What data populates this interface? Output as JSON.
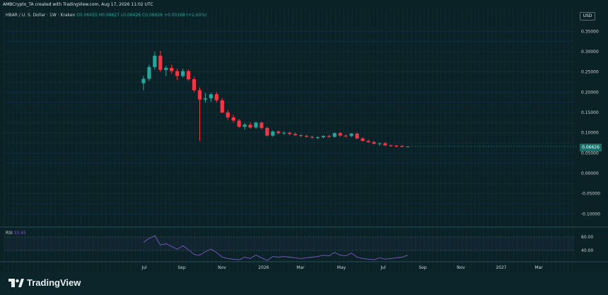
{
  "header": {
    "created_by": "AMBCrypto_TA created with TradingView.com, Aug 17, 2026 11:02 UTC"
  },
  "legend": {
    "symbol": "HBAR / U. S. Dollar · 1W · Kraken",
    "ohlc": "O0.06455 H0.06627 L0.06426 C0.06626",
    "change": "+0.00168 (+2.60%)"
  },
  "currency_button": "USD",
  "current_price": "0.06626",
  "rsi": {
    "label": "RSI",
    "value": "33.45"
  },
  "brand": {
    "name": "TradingView"
  },
  "colors": {
    "background": "#0a2226",
    "up": "#26a69a",
    "down": "#f23645",
    "rsi_line": "#7e57c2",
    "grid": "#1d3b5a"
  },
  "chart_data": {
    "type": "candlestick",
    "ylim": [
      -0.12,
      0.37
    ],
    "yticks": [
      "0.35000",
      "0.30000",
      "0.25000",
      "0.20000",
      "0.15000",
      "0.10000",
      "0.05000",
      "0.00000",
      "-0.05000",
      "-0.10000"
    ],
    "x_tick_labels": [
      "Jul",
      "Sep",
      "Nov",
      "2026",
      "Mar",
      "May",
      "Jul",
      "Sep",
      "Nov",
      "2027",
      "Mar"
    ],
    "candles": [
      {
        "o": 0.222,
        "h": 0.24,
        "l": 0.205,
        "c": 0.233
      },
      {
        "o": 0.233,
        "h": 0.268,
        "l": 0.228,
        "c": 0.262
      },
      {
        "o": 0.262,
        "h": 0.3,
        "l": 0.255,
        "c": 0.29
      },
      {
        "o": 0.29,
        "h": 0.302,
        "l": 0.25,
        "c": 0.255
      },
      {
        "o": 0.255,
        "h": 0.265,
        "l": 0.24,
        "c": 0.26
      },
      {
        "o": 0.26,
        "h": 0.268,
        "l": 0.245,
        "c": 0.252
      },
      {
        "o": 0.252,
        "h": 0.258,
        "l": 0.23,
        "c": 0.24
      },
      {
        "o": 0.24,
        "h": 0.258,
        "l": 0.236,
        "c": 0.252
      },
      {
        "o": 0.252,
        "h": 0.256,
        "l": 0.228,
        "c": 0.232
      },
      {
        "o": 0.232,
        "h": 0.238,
        "l": 0.2,
        "c": 0.205
      },
      {
        "o": 0.205,
        "h": 0.212,
        "l": 0.08,
        "c": 0.182
      },
      {
        "o": 0.182,
        "h": 0.198,
        "l": 0.175,
        "c": 0.185
      },
      {
        "o": 0.185,
        "h": 0.198,
        "l": 0.176,
        "c": 0.195
      },
      {
        "o": 0.195,
        "h": 0.2,
        "l": 0.175,
        "c": 0.18
      },
      {
        "o": 0.18,
        "h": 0.186,
        "l": 0.148,
        "c": 0.15
      },
      {
        "o": 0.15,
        "h": 0.156,
        "l": 0.132,
        "c": 0.138
      },
      {
        "o": 0.138,
        "h": 0.145,
        "l": 0.125,
        "c": 0.13
      },
      {
        "o": 0.13,
        "h": 0.134,
        "l": 0.112,
        "c": 0.115
      },
      {
        "o": 0.115,
        "h": 0.124,
        "l": 0.108,
        "c": 0.12
      },
      {
        "o": 0.12,
        "h": 0.126,
        "l": 0.11,
        "c": 0.113
      },
      {
        "o": 0.113,
        "h": 0.128,
        "l": 0.11,
        "c": 0.125
      },
      {
        "o": 0.125,
        "h": 0.128,
        "l": 0.108,
        "c": 0.112
      },
      {
        "o": 0.112,
        "h": 0.115,
        "l": 0.09,
        "c": 0.093
      },
      {
        "o": 0.093,
        "h": 0.106,
        "l": 0.09,
        "c": 0.103
      },
      {
        "o": 0.103,
        "h": 0.106,
        "l": 0.096,
        "c": 0.099
      },
      {
        "o": 0.099,
        "h": 0.104,
        "l": 0.095,
        "c": 0.1
      },
      {
        "o": 0.1,
        "h": 0.103,
        "l": 0.094,
        "c": 0.097
      },
      {
        "o": 0.097,
        "h": 0.101,
        "l": 0.092,
        "c": 0.094
      },
      {
        "o": 0.094,
        "h": 0.097,
        "l": 0.089,
        "c": 0.092
      },
      {
        "o": 0.092,
        "h": 0.095,
        "l": 0.088,
        "c": 0.09
      },
      {
        "o": 0.09,
        "h": 0.093,
        "l": 0.085,
        "c": 0.088
      },
      {
        "o": 0.088,
        "h": 0.091,
        "l": 0.084,
        "c": 0.089
      },
      {
        "o": 0.089,
        "h": 0.094,
        "l": 0.086,
        "c": 0.092
      },
      {
        "o": 0.092,
        "h": 0.095,
        "l": 0.087,
        "c": 0.09
      },
      {
        "o": 0.09,
        "h": 0.101,
        "l": 0.088,
        "c": 0.099
      },
      {
        "o": 0.099,
        "h": 0.102,
        "l": 0.09,
        "c": 0.093
      },
      {
        "o": 0.093,
        "h": 0.096,
        "l": 0.088,
        "c": 0.092
      },
      {
        "o": 0.092,
        "h": 0.099,
        "l": 0.089,
        "c": 0.098
      },
      {
        "o": 0.098,
        "h": 0.1,
        "l": 0.084,
        "c": 0.086
      },
      {
        "o": 0.086,
        "h": 0.089,
        "l": 0.078,
        "c": 0.08
      },
      {
        "o": 0.08,
        "h": 0.083,
        "l": 0.075,
        "c": 0.077
      },
      {
        "o": 0.077,
        "h": 0.08,
        "l": 0.071,
        "c": 0.073
      },
      {
        "o": 0.073,
        "h": 0.076,
        "l": 0.068,
        "c": 0.074
      },
      {
        "o": 0.074,
        "h": 0.077,
        "l": 0.067,
        "c": 0.069
      },
      {
        "o": 0.069,
        "h": 0.071,
        "l": 0.065,
        "c": 0.068
      },
      {
        "o": 0.068,
        "h": 0.07,
        "l": 0.064,
        "c": 0.067
      },
      {
        "o": 0.067,
        "h": 0.07,
        "l": 0.064,
        "c": 0.065
      },
      {
        "o": 0.0646,
        "h": 0.0663,
        "l": 0.0643,
        "c": 0.0663
      }
    ],
    "rsi_values": [
      52,
      58,
      62,
      48,
      50,
      46,
      42,
      47,
      41,
      34,
      33,
      38,
      42,
      37,
      30,
      28,
      27,
      26,
      30,
      28,
      33,
      29,
      25,
      31,
      30,
      31,
      30,
      29,
      28,
      29,
      30,
      31,
      33,
      32,
      37,
      33,
      32,
      36,
      30,
      28,
      27,
      26,
      29,
      27,
      28,
      29,
      30,
      33
    ],
    "rsi_yticks": [
      "60.00",
      "40.00"
    ],
    "rsi_ylim": [
      20,
      70
    ]
  }
}
